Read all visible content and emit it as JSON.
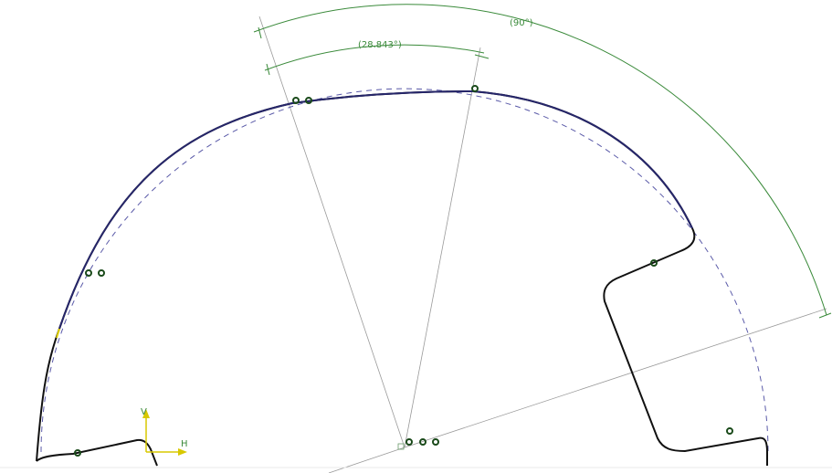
{
  "dimensions": [
    {
      "label": "(90°)"
    },
    {
      "label": "(28.843°)"
    }
  ],
  "axis_indicator": {
    "vertical": "V",
    "horizontal": "H"
  }
}
